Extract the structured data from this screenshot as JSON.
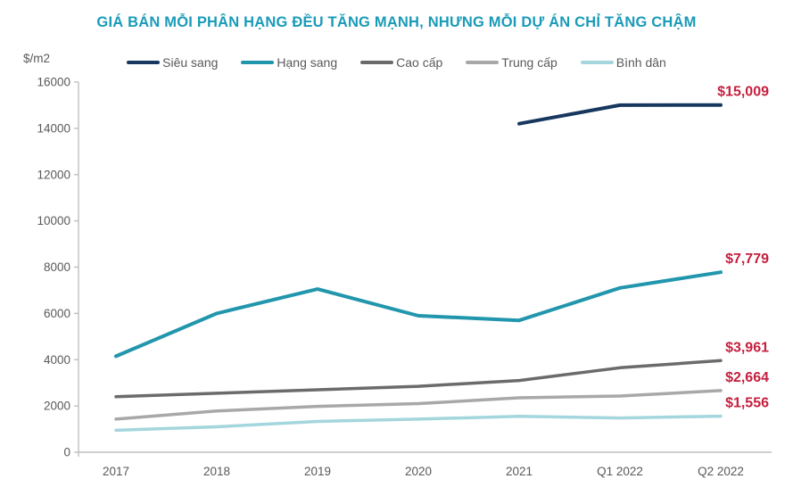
{
  "title": "GIÁ BÁN MỖI PHÂN HẠNG ĐỀU TĂNG MẠNH, NHƯNG MỖI DỰ ÁN CHỈ TĂNG CHẬM",
  "colors": {
    "title": "#1A9BB8",
    "end_label": "#C41F3E",
    "axis_line": "#BFBFBF",
    "axis_text": "#595959"
  },
  "chart_data": {
    "type": "line",
    "ylabel": "$/m2",
    "categories": [
      "2017",
      "2018",
      "2019",
      "2020",
      "2021",
      "Q1 2022",
      "Q2 2022"
    ],
    "ylim": [
      0,
      16000
    ],
    "y_ticks": [
      0,
      2000,
      4000,
      6000,
      8000,
      10000,
      12000,
      14000,
      16000
    ],
    "grid": false,
    "legend_position": "top",
    "series": [
      {
        "name": "Siêu sang",
        "color": "#17375E",
        "stroke_width": 4,
        "values": [
          null,
          null,
          null,
          null,
          14200,
          15000,
          15009
        ],
        "end_label": "$15,009"
      },
      {
        "name": "Hạng sang",
        "color": "#2196AC",
        "stroke_width": 4,
        "values": [
          4150,
          6000,
          7050,
          5900,
          5700,
          7100,
          7779
        ],
        "end_label": "$7,779"
      },
      {
        "name": "Cao cấp",
        "color": "#6B6B6B",
        "stroke_width": 3.5,
        "values": [
          2400,
          2550,
          2700,
          2850,
          3100,
          3650,
          3961
        ],
        "end_label": "$3,961"
      },
      {
        "name": "Trung cấp",
        "color": "#A8A8A8",
        "stroke_width": 3.5,
        "values": [
          1430,
          1780,
          1980,
          2100,
          2350,
          2430,
          2664
        ],
        "end_label": "$2,664"
      },
      {
        "name": "Bình dân",
        "color": "#A4D6DD",
        "stroke_width": 3.5,
        "values": [
          950,
          1100,
          1330,
          1430,
          1550,
          1480,
          1556
        ],
        "end_label": "$1,556"
      }
    ]
  }
}
